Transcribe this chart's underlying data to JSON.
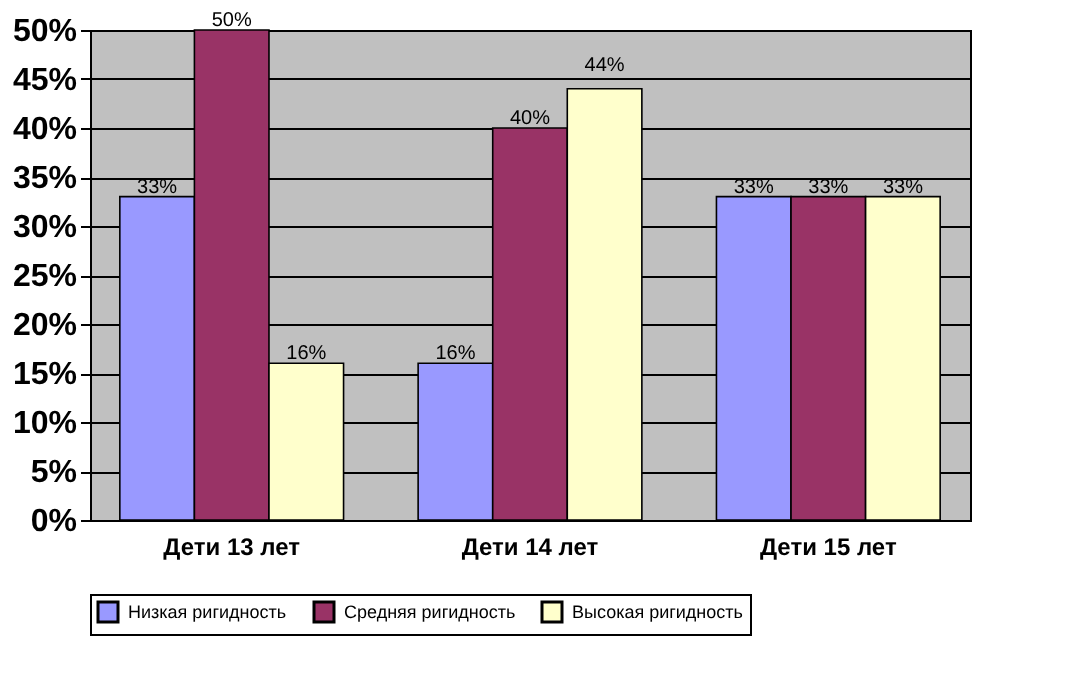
{
  "chart_data": {
    "type": "bar",
    "categories": [
      "Дети 13 лет",
      "Дети 14 лет",
      "Дети 15 лет"
    ],
    "series": [
      {
        "name": "Низкая ригидность",
        "color": "#9999ff",
        "values": [
          33,
          16,
          33
        ],
        "value_labels": [
          "33%",
          "16%",
          "33%"
        ]
      },
      {
        "name": "Средняя ригидность",
        "color": "#993366",
        "values": [
          50,
          40,
          33
        ],
        "value_labels": [
          "50%",
          "40%",
          "33%"
        ]
      },
      {
        "name": "Высокая ригидность",
        "color": "#ffffcc",
        "values": [
          16,
          44,
          33
        ],
        "value_labels": [
          "16%",
          "44%",
          "33%"
        ]
      }
    ],
    "ylim": [
      0,
      50
    ],
    "yticks": [
      {
        "value": 0,
        "label": "0%"
      },
      {
        "value": 5,
        "label": "5%"
      },
      {
        "value": 10,
        "label": "10%"
      },
      {
        "value": 15,
        "label": "15%"
      },
      {
        "value": 20,
        "label": "20%"
      },
      {
        "value": 25,
        "label": "25%"
      },
      {
        "value": 30,
        "label": "30%"
      },
      {
        "value": 35,
        "label": "35%"
      },
      {
        "value": 40,
        "label": "40%"
      },
      {
        "value": 45,
        "label": "45%"
      },
      {
        "value": 50,
        "label": "50%"
      }
    ],
    "grid": "y",
    "legend": "bottom"
  }
}
